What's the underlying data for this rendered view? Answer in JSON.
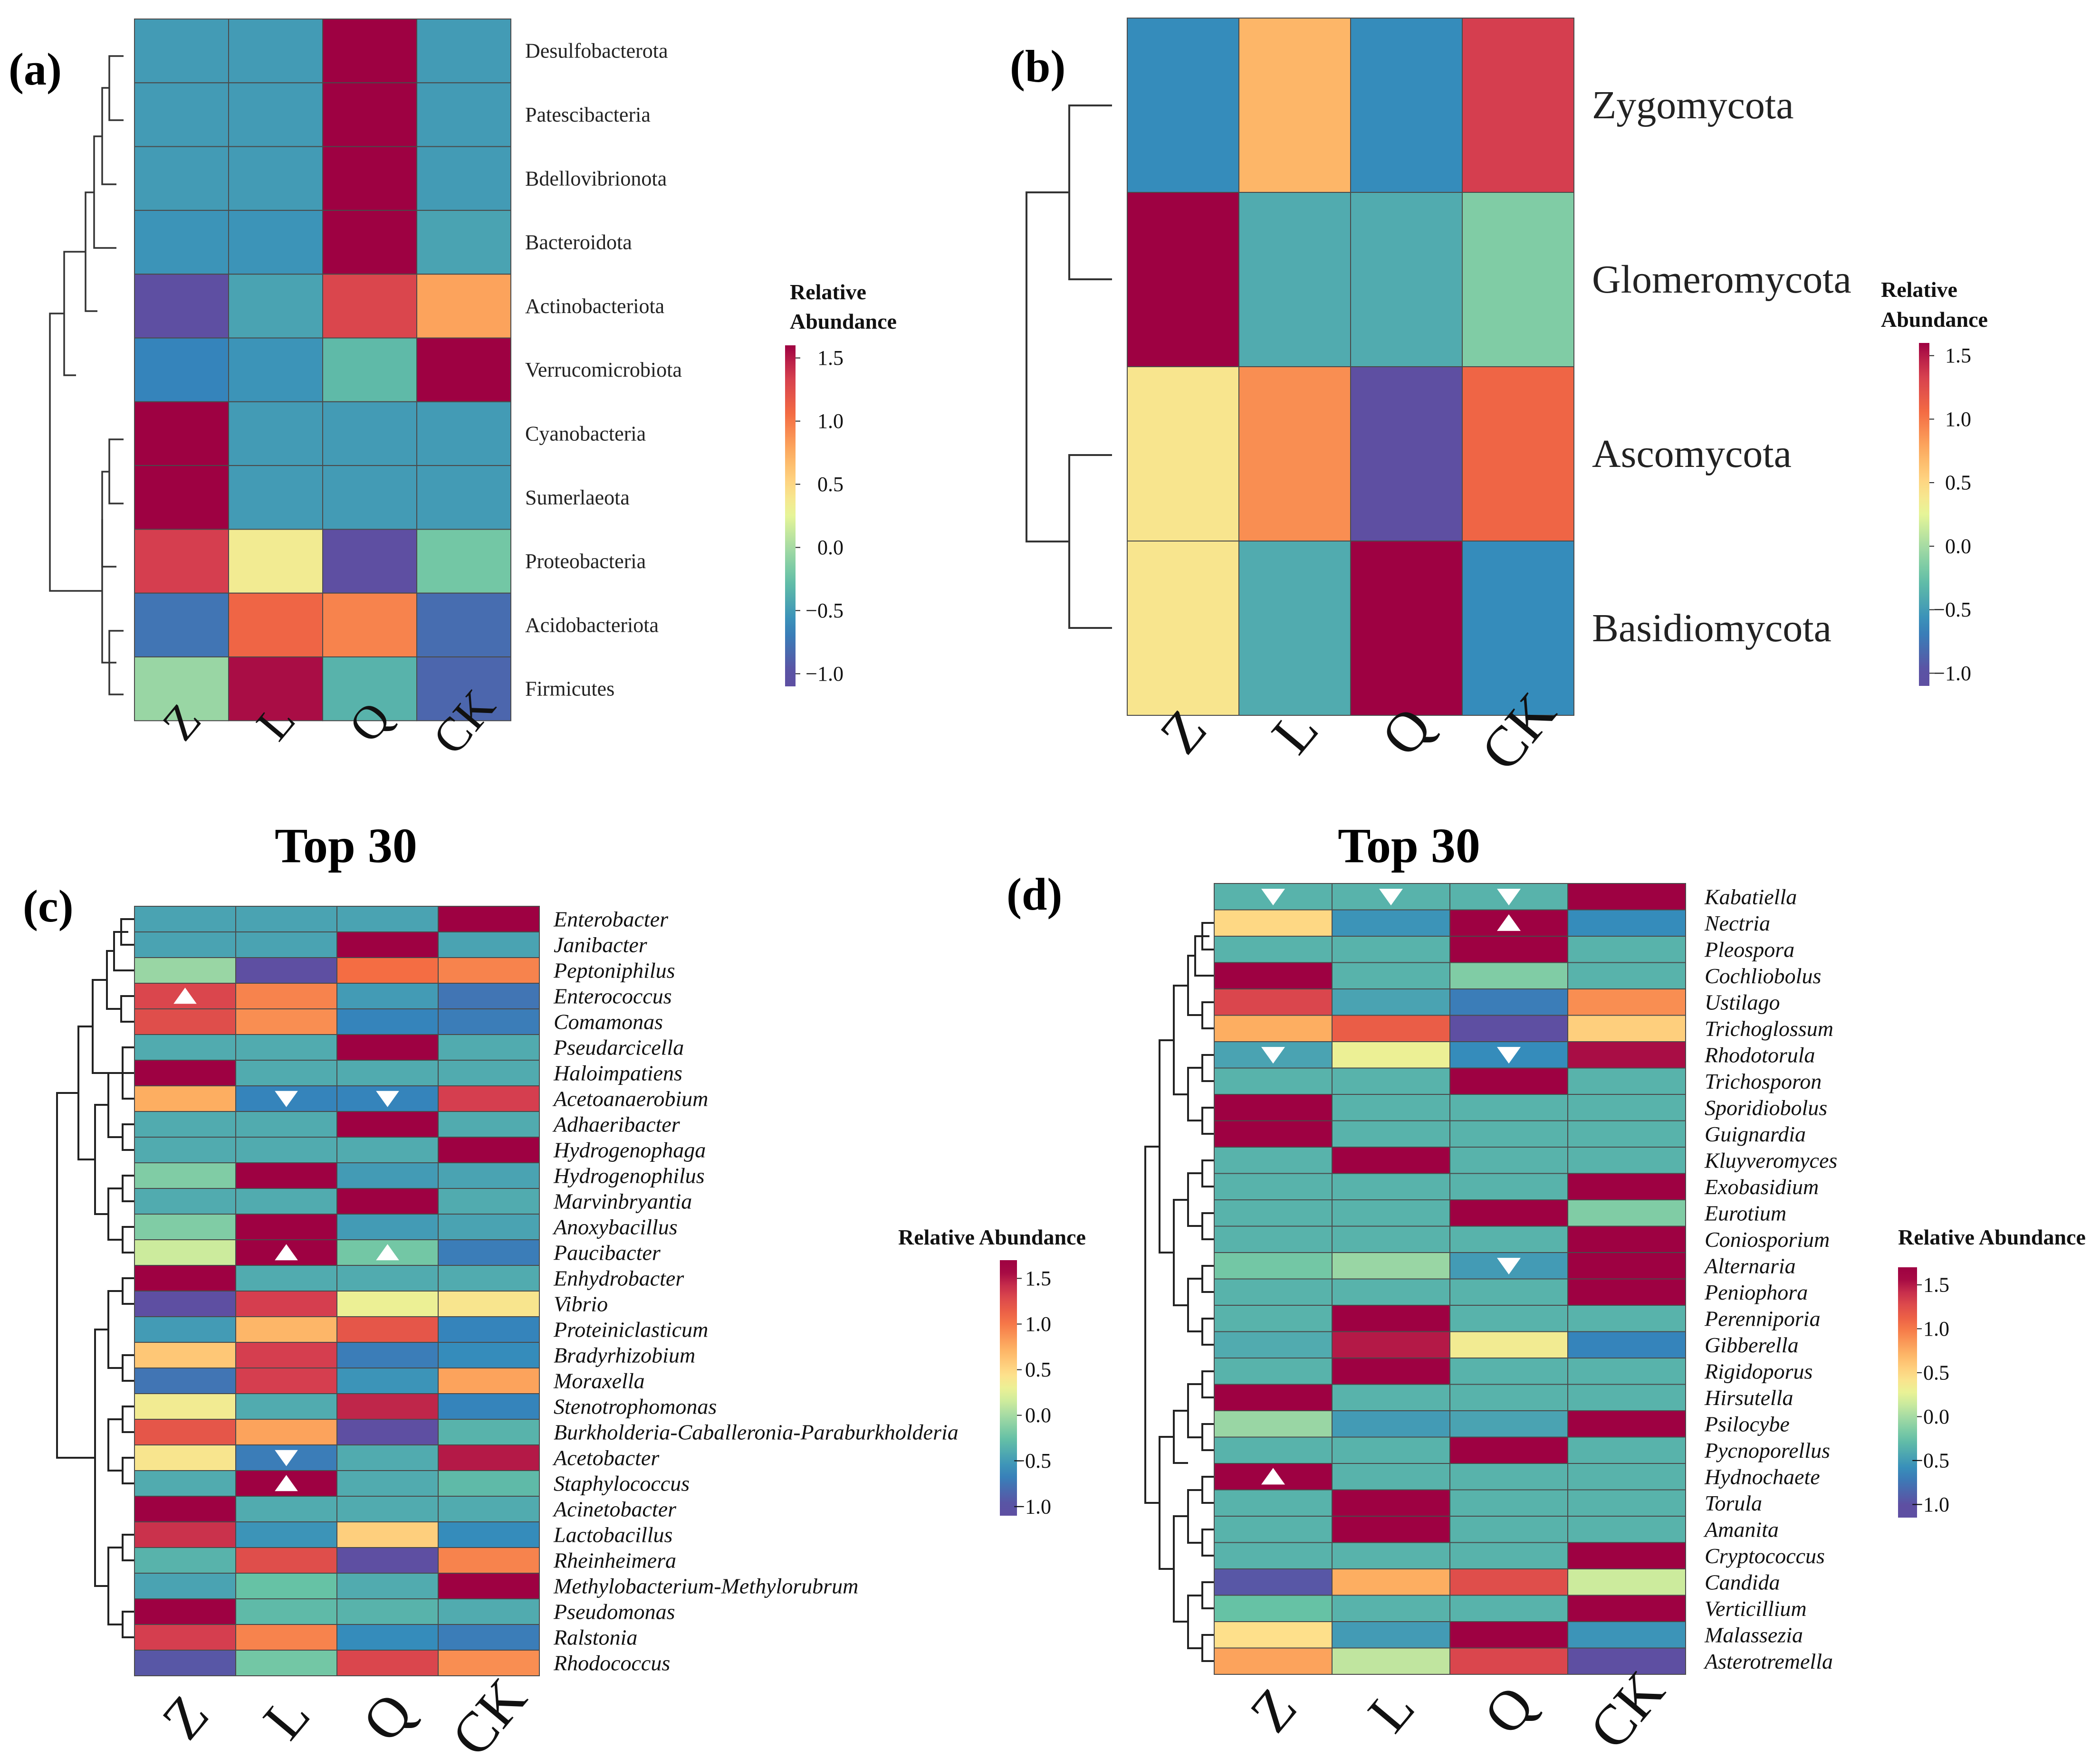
{
  "colorscale": {
    "stops": [
      {
        "v": -1.0,
        "color": "#5E4FA2"
      },
      {
        "v": -0.625,
        "color": "#3288BD"
      },
      {
        "v": -0.25,
        "color": "#66C2A5"
      },
      {
        "v": 0.0,
        "color": "#A6DBA4"
      },
      {
        "v": 0.25,
        "color": "#E6F598"
      },
      {
        "v": 0.45,
        "color": "#FEE08B"
      },
      {
        "v": 0.75,
        "color": "#FDAE61"
      },
      {
        "v": 1.05,
        "color": "#F46D43"
      },
      {
        "v": 1.35,
        "color": "#D53E4F"
      },
      {
        "v": 1.6,
        "color": "#9E0142"
      }
    ]
  },
  "chart_data": [
    {
      "id": "a",
      "type": "heatmap",
      "panel_label": "(a)",
      "title": "",
      "columns": [
        "Z",
        "L",
        "Q",
        "CK"
      ],
      "rows": [
        "Desulfobacterota",
        "Patescibacteria",
        "Bdellovibrionota",
        "Bacteroidota",
        "Actinobacteriota",
        "Verrucomicrobiota",
        "Cyanobacteria",
        "Sumerlaeota",
        "Proteobacteria",
        "Acidobacteriota",
        "Firmicutes"
      ],
      "values": [
        [
          -0.5,
          -0.5,
          1.65,
          -0.5
        ],
        [
          -0.5,
          -0.5,
          1.65,
          -0.5
        ],
        [
          -0.5,
          -0.5,
          1.65,
          -0.5
        ],
        [
          -0.55,
          -0.55,
          1.65,
          -0.45
        ],
        [
          -1.0,
          -0.45,
          1.3,
          0.8
        ],
        [
          -0.65,
          -0.55,
          -0.3,
          1.65
        ],
        [
          1.65,
          -0.5,
          -0.5,
          -0.5
        ],
        [
          1.65,
          -0.5,
          -0.5,
          -0.5
        ],
        [
          1.35,
          0.35,
          -1.0,
          -0.2
        ],
        [
          -0.75,
          1.1,
          0.95,
          -0.8
        ],
        [
          -0.05,
          1.55,
          -0.35,
          -0.85
        ]
      ],
      "legend": {
        "title_line1": "Relative",
        "title_line2": "Abundance",
        "ticks": [
          "1.5",
          "1.0",
          "0.5",
          "0.0",
          "−0.5",
          "−1.0"
        ],
        "tick_values": [
          1.5,
          1.0,
          0.5,
          0.0,
          -0.5,
          -1.0
        ],
        "range": [
          -1.1,
          1.6
        ]
      },
      "markers": []
    },
    {
      "id": "b",
      "type": "heatmap",
      "panel_label": "(b)",
      "title": "",
      "columns": [
        "Z",
        "L",
        "Q",
        "CK"
      ],
      "rows": [
        "Zygomycota",
        "Glomeromycota",
        "Ascomycota",
        "Basidiomycota"
      ],
      "values": [
        [
          -0.6,
          0.7,
          -0.6,
          1.35
        ],
        [
          1.6,
          -0.4,
          -0.4,
          -0.15
        ],
        [
          0.4,
          0.9,
          -1.0,
          1.1
        ],
        [
          0.4,
          -0.4,
          1.6,
          -0.6
        ]
      ],
      "legend": {
        "title_line1": "Relative",
        "title_line2": "Abundance",
        "ticks": [
          "1.5",
          "1.0",
          "0.5",
          "0.0",
          "−0.5",
          "−1.0"
        ],
        "tick_values": [
          1.5,
          1.0,
          0.5,
          0.0,
          -0.5,
          -1.0
        ],
        "range": [
          -1.1,
          1.6
        ]
      },
      "markers": []
    },
    {
      "id": "c",
      "type": "heatmap",
      "panel_label": "(c)",
      "title": "Top 30",
      "columns": [
        "Z",
        "L",
        "Q",
        "CK"
      ],
      "rows": [
        "Enterobacter",
        "Janibacter",
        "Peptoniphilus",
        "Enterococcus",
        "Comamonas",
        "Pseudarcicella",
        "Haloimpatiens",
        "Acetoanaerobium",
        "Adhaeribacter",
        "Hydrogenophaga",
        "Hydrogenophilus",
        "Marvinbryantia",
        "Anoxybacillus",
        "Paucibacter",
        "Enhydrobacter",
        "Vibrio",
        "Proteiniclasticum",
        "Bradyrhizobium",
        "Moraxella",
        "Stenotrophomonas",
        "Burkholderia-Caballeronia-Paraburkholderia",
        "Acetobacter",
        "Staphylococcus",
        "Acinetobacter",
        "Lactobacillus",
        "Rheinheimera",
        "Methylobacterium-Methylorubrum",
        "Pseudomonas",
        "Ralstonia",
        "Rhodococcus"
      ],
      "values": [
        [
          -0.45,
          -0.45,
          -0.45,
          1.6
        ],
        [
          -0.45,
          -0.45,
          1.6,
          -0.45
        ],
        [
          -0.05,
          -1.0,
          1.05,
          0.95
        ],
        [
          1.3,
          0.95,
          -0.5,
          -0.75
        ],
        [
          1.25,
          0.9,
          -0.65,
          -0.7
        ],
        [
          -0.4,
          -0.4,
          1.6,
          -0.4
        ],
        [
          1.6,
          -0.4,
          -0.4,
          -0.4
        ],
        [
          0.75,
          -0.65,
          -0.65,
          1.35
        ],
        [
          -0.4,
          -0.4,
          1.6,
          -0.4
        ],
        [
          -0.4,
          -0.4,
          -0.4,
          1.6
        ],
        [
          -0.15,
          1.6,
          -0.5,
          -0.45
        ],
        [
          -0.4,
          -0.4,
          1.6,
          -0.4
        ],
        [
          -0.15,
          1.6,
          -0.5,
          -0.45
        ],
        [
          0.15,
          1.6,
          -0.2,
          -0.7
        ],
        [
          1.6,
          -0.4,
          -0.4,
          -0.4
        ],
        [
          -1.0,
          1.35,
          0.3,
          0.4
        ],
        [
          -0.5,
          0.7,
          1.2,
          -0.65
        ],
        [
          0.6,
          1.35,
          -0.7,
          -0.6
        ],
        [
          -0.75,
          1.35,
          -0.55,
          0.8
        ],
        [
          0.35,
          -0.4,
          1.45,
          -0.65
        ],
        [
          1.2,
          0.8,
          -1.0,
          -0.35
        ],
        [
          0.4,
          -0.7,
          -0.4,
          1.5
        ],
        [
          -0.4,
          1.6,
          -0.4,
          -0.3
        ],
        [
          1.6,
          -0.4,
          -0.4,
          -0.4
        ],
        [
          1.4,
          -0.55,
          0.55,
          -0.6
        ],
        [
          -0.35,
          1.25,
          -1.0,
          0.95
        ],
        [
          -0.45,
          -0.25,
          -0.4,
          1.6
        ],
        [
          1.6,
          -0.3,
          -0.35,
          -0.4
        ],
        [
          1.35,
          0.95,
          -0.6,
          -0.7
        ],
        [
          -0.95,
          -0.2,
          1.3,
          0.9
        ]
      ],
      "legend": {
        "title_line1": "Relative Abundance",
        "title_line2": "",
        "ticks": [
          "1.5",
          "1.0",
          "0.5",
          "0.0",
          "−0.5",
          "−1.0"
        ],
        "tick_values": [
          1.5,
          1.0,
          0.5,
          0.0,
          -0.5,
          -1.0
        ],
        "range": [
          -1.1,
          1.7
        ]
      },
      "markers": [
        {
          "row": 3,
          "col": 0,
          "dir": "up"
        },
        {
          "row": 7,
          "col": 1,
          "dir": "down"
        },
        {
          "row": 7,
          "col": 2,
          "dir": "down"
        },
        {
          "row": 13,
          "col": 1,
          "dir": "up"
        },
        {
          "row": 13,
          "col": 2,
          "dir": "up"
        },
        {
          "row": 21,
          "col": 1,
          "dir": "down"
        },
        {
          "row": 22,
          "col": 1,
          "dir": "up"
        }
      ]
    },
    {
      "id": "d",
      "type": "heatmap",
      "panel_label": "(d)",
      "title": "Top 30",
      "columns": [
        "Z",
        "L",
        "Q",
        "CK"
      ],
      "rows": [
        "Kabatiella",
        "Nectria",
        "Pleospora",
        "Cochliobolus",
        "Ustilago",
        "Trichoglossum",
        "Rhodotorula",
        "Trichosporon",
        "Sporidiobolus",
        "Guignardia",
        "Kluyveromyces",
        "Exobasidium",
        "Eurotium",
        "Coniosporium",
        "Alternaria",
        "Peniophora",
        "Perenniporia",
        "Gibberella",
        "Rigidoporus",
        "Hirsutella",
        "Psilocybe",
        "Pycnoporellus",
        "Hydnochaete",
        "Torula",
        "Amanita",
        "Cryptococcus",
        "Candida",
        "Verticillium",
        "Malassezia",
        "Asterotremella"
      ],
      "values": [
        [
          -0.35,
          -0.35,
          -0.35,
          1.65
        ],
        [
          0.5,
          -0.55,
          1.6,
          -0.6
        ],
        [
          -0.35,
          -0.35,
          1.65,
          -0.35
        ],
        [
          1.65,
          -0.35,
          -0.15,
          -0.35
        ],
        [
          1.3,
          -0.45,
          -0.7,
          0.9
        ],
        [
          0.75,
          1.15,
          -1.0,
          0.55
        ],
        [
          -0.45,
          0.3,
          -0.6,
          1.55
        ],
        [
          -0.35,
          -0.35,
          1.65,
          -0.35
        ],
        [
          1.65,
          -0.35,
          -0.35,
          -0.35
        ],
        [
          1.65,
          -0.35,
          -0.35,
          -0.35
        ],
        [
          -0.35,
          1.65,
          -0.35,
          -0.35
        ],
        [
          -0.35,
          -0.35,
          -0.35,
          1.65
        ],
        [
          -0.35,
          -0.35,
          1.65,
          -0.15
        ],
        [
          -0.35,
          -0.35,
          -0.35,
          1.65
        ],
        [
          -0.2,
          -0.05,
          -0.5,
          1.65
        ],
        [
          -0.35,
          -0.35,
          -0.35,
          1.65
        ],
        [
          -0.35,
          1.65,
          -0.35,
          -0.35
        ],
        [
          -0.4,
          1.5,
          0.35,
          -0.65
        ],
        [
          -0.35,
          1.65,
          -0.35,
          -0.35
        ],
        [
          1.65,
          -0.35,
          -0.35,
          -0.35
        ],
        [
          -0.05,
          -0.5,
          -0.45,
          1.6
        ],
        [
          -0.35,
          -0.35,
          1.65,
          -0.35
        ],
        [
          1.65,
          -0.35,
          -0.35,
          -0.35
        ],
        [
          -0.35,
          1.65,
          -0.35,
          -0.35
        ],
        [
          -0.35,
          1.65,
          -0.35,
          -0.35
        ],
        [
          -0.35,
          -0.35,
          -0.35,
          1.65
        ],
        [
          -0.95,
          0.75,
          1.25,
          0.15
        ],
        [
          -0.25,
          -0.35,
          -0.35,
          1.6
        ],
        [
          0.45,
          -0.5,
          1.6,
          -0.55
        ],
        [
          0.8,
          0.1,
          1.3,
          -1.0
        ]
      ],
      "legend": {
        "title_line1": "Relative Abundance",
        "title_line2": "",
        "ticks": [
          "1.5",
          "1.0",
          "0.5",
          "0.0",
          "−0.5",
          "−1.0"
        ],
        "tick_values": [
          1.5,
          1.0,
          0.5,
          0.0,
          -0.5,
          -1.0
        ],
        "range": [
          -1.15,
          1.7
        ]
      },
      "markers": [
        {
          "row": 0,
          "col": 0,
          "dir": "down"
        },
        {
          "row": 0,
          "col": 1,
          "dir": "down"
        },
        {
          "row": 0,
          "col": 2,
          "dir": "down"
        },
        {
          "row": 1,
          "col": 2,
          "dir": "up"
        },
        {
          "row": 6,
          "col": 0,
          "dir": "down"
        },
        {
          "row": 6,
          "col": 2,
          "dir": "down"
        },
        {
          "row": 14,
          "col": 2,
          "dir": "down"
        },
        {
          "row": 22,
          "col": 0,
          "dir": "up"
        }
      ]
    }
  ]
}
